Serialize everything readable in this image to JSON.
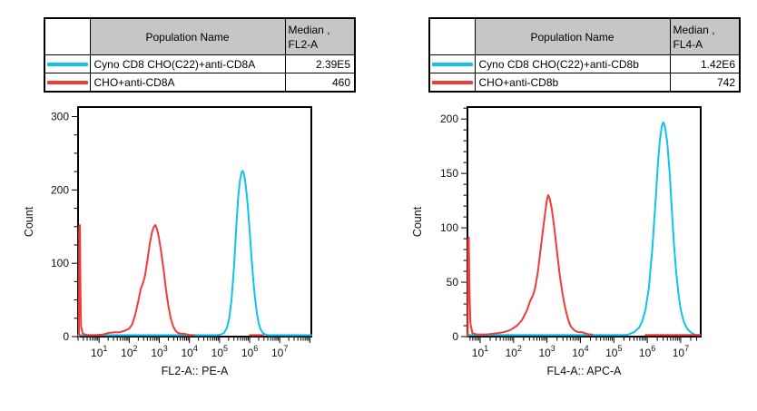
{
  "colors": {
    "cyan": "#0cc4ee",
    "red": "#f23b38",
    "table_header_bg": "#c6c6c6",
    "axis": "#000000",
    "background": "#ffffff"
  },
  "tables": [
    {
      "columns": {
        "population": "Population Name",
        "median_line1": "Median ,",
        "median_line2": "FL2-A"
      },
      "rows": [
        {
          "name": "Cyno CD8 CHO(C22)+anti-CD8A",
          "median": "2.39E5"
        },
        {
          "name": "CHO+anti-CD8A",
          "median": "460"
        }
      ]
    },
    {
      "columns": {
        "population": "Population Name",
        "median_line1": "Median ,",
        "median_line2": "FL4-A"
      },
      "rows": [
        {
          "name": "Cyno CD8 CHO(C22)+anti-CD8b",
          "median": "1.42E6"
        },
        {
          "name": "CHO+anti-CD8b",
          "median": "742"
        }
      ]
    }
  ],
  "chart_data": [
    {
      "type": "line",
      "title": "",
      "xlabel": "FL2-A:: PE-A",
      "ylabel": "Count",
      "x_scale": "log10",
      "x_min_exp": 0.3,
      "x_max_exp": 8.05,
      "x_decade_labels": [
        1,
        2,
        3,
        4,
        5,
        6,
        7
      ],
      "y_max_display": 313,
      "y_major_ticks": [
        0,
        100,
        200,
        300
      ],
      "y_minor_step": 25,
      "grid": false,
      "legend": "table-above",
      "series": [
        {
          "name": "Cyno CD8 CHO(C22)+anti-CD8A",
          "color": "#0cc4ee",
          "median": "2.39E5",
          "segments": [
            [
              [
                0.3,
                2
              ],
              [
                4.9,
                2
              ],
              [
                5.05,
                3
              ],
              [
                5.15,
                5
              ],
              [
                5.25,
                12
              ],
              [
                5.32,
                25
              ],
              [
                5.4,
                50
              ],
              [
                5.48,
                95
              ],
              [
                5.55,
                145
              ],
              [
                5.62,
                190
              ],
              [
                5.68,
                213
              ],
              [
                5.73,
                224
              ],
              [
                5.77,
                226
              ],
              [
                5.82,
                220
              ],
              [
                5.88,
                204
              ],
              [
                5.94,
                178
              ],
              [
                6.0,
                145
              ],
              [
                6.06,
                110
              ],
              [
                6.12,
                78
              ],
              [
                6.18,
                52
              ],
              [
                6.24,
                32
              ],
              [
                6.3,
                18
              ],
              [
                6.36,
                10
              ],
              [
                6.44,
                5
              ],
              [
                6.52,
                3
              ],
              [
                6.62,
                2
              ],
              [
                6.75,
                2
              ],
              [
                8.05,
                2
              ]
            ]
          ]
        },
        {
          "name": "CHO+anti-CD8A",
          "color": "#f23b38",
          "median": "460",
          "segments": [
            [
              [
                0.33,
                0
              ],
              [
                0.34,
                150
              ],
              [
                0.36,
                152
              ],
              [
                0.38,
                60
              ],
              [
                0.4,
                14
              ],
              [
                0.46,
                4
              ],
              [
                0.62,
                2
              ],
              [
                0.9,
                2
              ],
              [
                1.15,
                3
              ],
              [
                1.3,
                5
              ],
              [
                1.5,
                6
              ],
              [
                1.7,
                6
              ],
              [
                1.85,
                8
              ],
              [
                2.0,
                11
              ],
              [
                2.1,
                17
              ],
              [
                2.2,
                30
              ],
              [
                2.3,
                48
              ],
              [
                2.38,
                65
              ],
              [
                2.45,
                72
              ],
              [
                2.52,
                82
              ],
              [
                2.6,
                103
              ],
              [
                2.68,
                126
              ],
              [
                2.76,
                143
              ],
              [
                2.82,
                150
              ],
              [
                2.87,
                152
              ],
              [
                2.92,
                147
              ],
              [
                2.98,
                136
              ],
              [
                3.06,
                116
              ],
              [
                3.14,
                92
              ],
              [
                3.22,
                65
              ],
              [
                3.3,
                42
              ],
              [
                3.38,
                25
              ],
              [
                3.46,
                14
              ],
              [
                3.54,
                8
              ],
              [
                3.62,
                5
              ],
              [
                3.72,
                4
              ],
              [
                3.82,
                4
              ],
              [
                3.92,
                3
              ],
              [
                4.02,
                2
              ],
              [
                4.15,
                2
              ]
            ],
            [
              [
                6.0,
                2
              ],
              [
                6.45,
                2
              ]
            ]
          ]
        }
      ]
    },
    {
      "type": "line",
      "title": "",
      "xlabel": "FL4-A:: APC-A",
      "ylabel": "Count",
      "x_scale": "log10",
      "x_min_exp": 0.62,
      "x_max_exp": 7.6,
      "x_decade_labels": [
        1,
        2,
        3,
        4,
        5,
        6,
        7
      ],
      "y_max_display": 211,
      "y_major_ticks": [
        0,
        50,
        100,
        150,
        200
      ],
      "y_minor_step": 10,
      "grid": false,
      "legend": "table-above",
      "series": [
        {
          "name": "Cyno CD8 CHO(C22)+anti-CD8b",
          "color": "#0cc4ee",
          "median": "1.42E6",
          "segments": [
            [
              [
                0.62,
                1.5
              ],
              [
                5.3,
                1.5
              ],
              [
                5.45,
                2
              ],
              [
                5.6,
                4
              ],
              [
                5.75,
                8
              ],
              [
                5.85,
                14
              ],
              [
                5.95,
                25
              ],
              [
                6.05,
                45
              ],
              [
                6.15,
                80
              ],
              [
                6.25,
                125
              ],
              [
                6.32,
                160
              ],
              [
                6.38,
                182
              ],
              [
                6.44,
                194
              ],
              [
                6.48,
                197
              ],
              [
                6.53,
                193
              ],
              [
                6.6,
                178
              ],
              [
                6.67,
                150
              ],
              [
                6.74,
                115
              ],
              [
                6.8,
                85
              ],
              [
                6.87,
                58
              ],
              [
                6.94,
                38
              ],
              [
                7.0,
                25
              ],
              [
                7.1,
                13
              ],
              [
                7.2,
                7
              ],
              [
                7.3,
                4
              ],
              [
                7.4,
                2
              ],
              [
                7.5,
                1.5
              ],
              [
                7.58,
                1.5
              ]
            ]
          ]
        },
        {
          "name": "CHO+anti-CD8b",
          "color": "#f23b38",
          "median": "742",
          "segments": [
            [
              [
                0.63,
                0
              ],
              [
                0.64,
                88
              ],
              [
                0.66,
                91
              ],
              [
                0.68,
                45
              ],
              [
                0.71,
                12
              ],
              [
                0.77,
                3
              ],
              [
                0.9,
                2
              ],
              [
                1.2,
                2
              ],
              [
                1.5,
                3
              ],
              [
                1.7,
                4
              ],
              [
                1.9,
                6
              ],
              [
                2.1,
                10
              ],
              [
                2.25,
                15
              ],
              [
                2.4,
                24
              ],
              [
                2.5,
                33
              ],
              [
                2.58,
                38
              ],
              [
                2.64,
                44
              ],
              [
                2.72,
                58
              ],
              [
                2.8,
                78
              ],
              [
                2.88,
                98
              ],
              [
                2.95,
                115
              ],
              [
                3.0,
                126
              ],
              [
                3.04,
                130
              ],
              [
                3.08,
                127
              ],
              [
                3.14,
                118
              ],
              [
                3.22,
                100
              ],
              [
                3.3,
                78
              ],
              [
                3.38,
                57
              ],
              [
                3.46,
                40
              ],
              [
                3.54,
                27
              ],
              [
                3.62,
                17
              ],
              [
                3.7,
                10
              ],
              [
                3.78,
                7
              ],
              [
                3.86,
                5
              ],
              [
                3.95,
                4
              ],
              [
                4.05,
                4
              ],
              [
                4.15,
                3
              ],
              [
                4.25,
                2
              ],
              [
                4.35,
                2
              ]
            ],
            [
              [
                5.95,
                1.5
              ],
              [
                7.58,
                1.5
              ]
            ]
          ]
        }
      ]
    }
  ]
}
